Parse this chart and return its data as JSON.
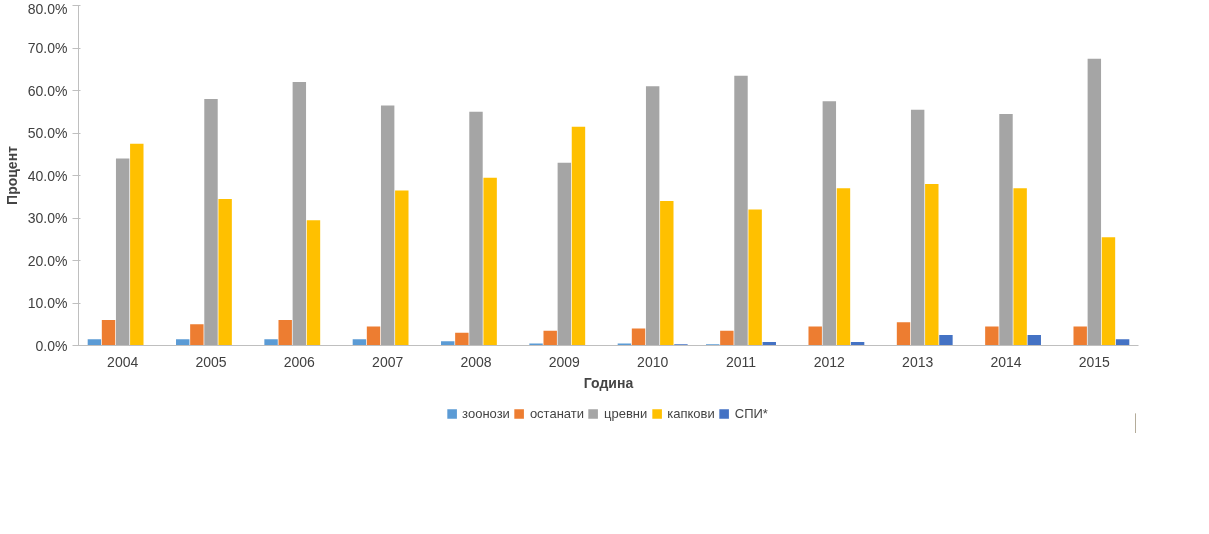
{
  "chart_data": {
    "type": "bar",
    "xlabel": "Година",
    "ylabel": "Процент",
    "categories": [
      "2004",
      "2005",
      "2006",
      "2007",
      "2008",
      "2009",
      "2010",
      "2011",
      "2012",
      "2013",
      "2014",
      "2015"
    ],
    "series": [
      {
        "name": "зоонози",
        "color": "#5b9bd5",
        "values": [
          1.5,
          1.5,
          1.5,
          1.5,
          1,
          0.5,
          0.5,
          0.3,
          null,
          null,
          null,
          null
        ]
      },
      {
        "name": "останати",
        "color": "#ed7d31",
        "values": [
          6,
          5,
          6,
          4.5,
          3,
          3.5,
          4,
          3.5,
          4.5,
          5.5,
          4.5,
          4.5
        ]
      },
      {
        "name": "цревни",
        "color": "#a5a5a5",
        "values": [
          44,
          58,
          62,
          56.5,
          55,
          43,
          61,
          63.5,
          57.5,
          55.5,
          54.5,
          67.5
        ]
      },
      {
        "name": "капкови",
        "color": "#ffc000",
        "values": [
          47.5,
          34.5,
          29.5,
          36.5,
          39.5,
          51.5,
          34,
          32,
          37,
          38,
          37,
          25.5
        ]
      },
      {
        "name": "СПИ*",
        "color": "#4472c4",
        "values": [
          null,
          null,
          null,
          null,
          null,
          null,
          0.3,
          0.8,
          0.8,
          2.5,
          2.5,
          1.5
        ]
      }
    ],
    "ylim": [
      0,
      80
    ],
    "yticks": [
      {
        "value": 0,
        "label": "0.0%"
      },
      {
        "value": 10,
        "label": "10.0%"
      },
      {
        "value": 20,
        "label": "20.0%"
      },
      {
        "value": 30,
        "label": "30.0%"
      },
      {
        "value": 40,
        "label": "40.0%"
      },
      {
        "value": 50,
        "label": "50.0%"
      },
      {
        "value": 60,
        "label": "60.0%"
      },
      {
        "value": 70,
        "label": "70.0%"
      },
      {
        "value": 80,
        "label": "80.0%"
      }
    ],
    "grid": false,
    "legend": "bottom"
  }
}
